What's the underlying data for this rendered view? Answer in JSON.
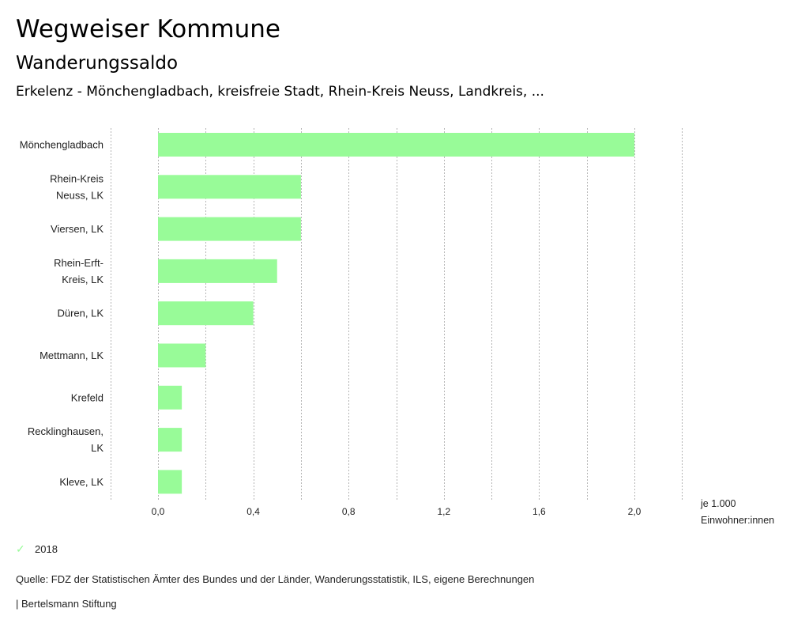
{
  "header": {
    "title": "Wegweiser Kommune",
    "subtitle": "Wanderungssaldo",
    "region": "Erkelenz - Mönchengladbach, kreisfreie Stadt, Rhein-Kreis Neuss, Landkreis, ..."
  },
  "chart_data": {
    "type": "bar",
    "orientation": "horizontal",
    "title": "Wanderungssaldo",
    "categories": [
      [
        "Mönchengladbach"
      ],
      [
        "Rhein-Kreis",
        "Neuss, LK"
      ],
      [
        "Viersen, LK"
      ],
      [
        "Rhein-Erft-",
        "Kreis, LK"
      ],
      [
        "Düren, LK"
      ],
      [
        "Mettmann, LK"
      ],
      [
        "Krefeld"
      ],
      [
        "Recklinghausen,",
        "LK"
      ],
      [
        "Kleve, LK"
      ]
    ],
    "series": [
      {
        "name": "2018",
        "color": "#98fb98",
        "values": [
          2.0,
          0.6,
          0.6,
          0.5,
          0.4,
          0.2,
          0.1,
          0.1,
          0.1
        ]
      }
    ],
    "xlim": [
      -0.2,
      2.2
    ],
    "xticks": [
      0.0,
      0.4,
      0.8,
      1.2,
      1.6,
      2.0
    ],
    "xtick_labels": [
      "0,0",
      "0,4",
      "0,8",
      "1,2",
      "1,6",
      "2,0"
    ],
    "grid_step": 0.2,
    "grid": true,
    "xlabel": [
      "je 1.000",
      "Einwohner:innen"
    ],
    "legend_position": "bottom-left"
  },
  "legend": {
    "label": "2018",
    "icon": "check-icon",
    "color": "#98fb98"
  },
  "footer": {
    "source": "Quelle: FDZ der Statistischen Ämter des Bundes und der Länder, Wanderungsstatistik, ILS, eigene Berechnungen",
    "brand": "| Bertelsmann Stiftung"
  }
}
